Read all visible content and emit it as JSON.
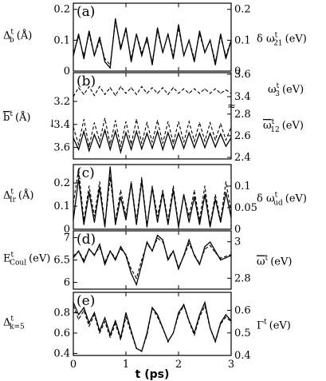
{
  "chart_data": [
    {
      "panel": "(a)",
      "type": "line",
      "left_axis": {
        "label": "Δ",
        "sup": "t",
        "sub": "b",
        "unit": "(Å)",
        "range": [
          0,
          0.22
        ],
        "ticks": [
          "0",
          "0.1",
          "0.2"
        ],
        "tick_values": [
          0,
          0.1,
          0.2
        ]
      },
      "right_axis": {
        "label": "δ ω",
        "sup": "t",
        "sub": "21",
        "unit": "(eV)",
        "range": [
          0,
          0.22
        ],
        "ticks": [
          "0",
          "0.1",
          "0.2"
        ],
        "tick_values": [
          0,
          0.1,
          0.2
        ]
      },
      "x": [
        0,
        0.1,
        0.2,
        0.3,
        0.4,
        0.5,
        0.6,
        0.7,
        0.8,
        0.9,
        1.0,
        1.1,
        1.2,
        1.3,
        1.4,
        1.5,
        1.6,
        1.7,
        1.8,
        1.9,
        2.0,
        2.1,
        2.2,
        2.3,
        2.4,
        2.5,
        2.6,
        2.7,
        2.8,
        2.9,
        3.0
      ],
      "series": [
        {
          "style": "solid",
          "axis": "left",
          "values": [
            0.05,
            0.12,
            0.04,
            0.13,
            0.05,
            0.11,
            0.03,
            0.01,
            0.17,
            0.07,
            0.14,
            0.03,
            0.12,
            0.05,
            0.11,
            0.02,
            0.14,
            0.06,
            0.12,
            0.04,
            0.15,
            0.05,
            0.1,
            0.03,
            0.13,
            0.06,
            0.1,
            0.02,
            0.12,
            0.04,
            0.1
          ]
        },
        {
          "style": "dashed",
          "axis": "right",
          "values": [
            0.06,
            0.11,
            0.05,
            0.12,
            0.05,
            0.1,
            0.04,
            0.02,
            0.16,
            0.08,
            0.13,
            0.04,
            0.12,
            0.06,
            0.1,
            0.03,
            0.13,
            0.06,
            0.12,
            0.05,
            0.14,
            0.05,
            0.1,
            0.04,
            0.12,
            0.06,
            0.1,
            0.03,
            0.11,
            0.05,
            0.1
          ]
        }
      ]
    },
    {
      "panel": "(b)",
      "type": "line",
      "left_axis": {
        "label": "b",
        "overline": true,
        "sup": "t",
        "unit": "(Å)",
        "arrow": "↓",
        "range": [
          3.7,
          2.95
        ],
        "ticks": [
          "3.2",
          "3.4",
          "3.6"
        ],
        "tick_values": [
          3.2,
          3.4,
          3.6
        ]
      },
      "right_axis_upper": {
        "label": "ω",
        "sup": "t",
        "sub": "3",
        "unit": "(eV)",
        "range": [
          3.35,
          3.6
        ],
        "ticks": [
          "3.6",
          "3.4"
        ],
        "tick_values": [
          3.6,
          3.4
        ]
      },
      "right_axis_lower": {
        "label": "ω",
        "overline": true,
        "sup": "t",
        "sub": "12",
        "unit": "(eV)",
        "range": [
          2.4,
          2.85
        ],
        "ticks": [
          "2.8",
          "2.6",
          "2.4"
        ],
        "tick_values": [
          2.8,
          2.6,
          2.4
        ]
      },
      "axis_break": "≈",
      "x": [
        0,
        0.1,
        0.2,
        0.3,
        0.4,
        0.5,
        0.6,
        0.7,
        0.8,
        0.9,
        1.0,
        1.1,
        1.2,
        1.3,
        1.4,
        1.5,
        1.6,
        1.7,
        1.8,
        1.9,
        2.0,
        2.1,
        2.2,
        2.3,
        2.4,
        2.5,
        2.6,
        2.7,
        2.8,
        2.9,
        3.0
      ],
      "series": [
        {
          "style": "dashed",
          "axis": "right_upper",
          "values": [
            3.4,
            3.48,
            3.42,
            3.49,
            3.41,
            3.49,
            3.42,
            3.48,
            3.41,
            3.49,
            3.43,
            3.48,
            3.42,
            3.49,
            3.43,
            3.48,
            3.43,
            3.48,
            3.42,
            3.48,
            3.43,
            3.47,
            3.43,
            3.47,
            3.43,
            3.47,
            3.43,
            3.47,
            3.43,
            3.46,
            3.43
          ]
        },
        {
          "style": "solid",
          "axis": "left",
          "values": [
            3.4,
            3.58,
            3.3,
            3.6,
            3.35,
            3.55,
            3.28,
            3.58,
            3.3,
            3.62,
            3.32,
            3.58,
            3.3,
            3.57,
            3.33,
            3.56,
            3.3,
            3.58,
            3.32,
            3.57,
            3.33,
            3.56,
            3.32,
            3.55,
            3.33,
            3.55,
            3.33,
            3.54,
            3.34,
            3.53,
            3.4
          ]
        },
        {
          "style": "dashed",
          "axis": "right_lower",
          "values": [
            2.68,
            2.52,
            2.75,
            2.5,
            2.72,
            2.55,
            2.76,
            2.52,
            2.74,
            2.5,
            2.73,
            2.52,
            2.75,
            2.53,
            2.72,
            2.54,
            2.74,
            2.53,
            2.73,
            2.53,
            2.73,
            2.54,
            2.73,
            2.55,
            2.72,
            2.55,
            2.72,
            2.56,
            2.71,
            2.56,
            2.68
          ]
        }
      ]
    },
    {
      "panel": "(c)",
      "type": "line",
      "left_axis": {
        "label": "Δ",
        "sup": "t",
        "sub": "Ir",
        "unit": "(Å)",
        "range": [
          0,
          0.28
        ],
        "ticks": [
          "0",
          "0.1",
          "0.2"
        ],
        "tick_values": [
          0,
          0.1,
          0.2
        ]
      },
      "right_axis": {
        "label": "δ ω",
        "sup": "t",
        "sub": "ud",
        "unit": "(eV)",
        "range": [
          0,
          0.15
        ],
        "ticks": [
          "0",
          "0.05",
          "0.1"
        ],
        "tick_values": [
          0,
          0.05,
          0.1
        ]
      },
      "x": [
        0,
        0.1,
        0.2,
        0.3,
        0.4,
        0.5,
        0.6,
        0.7,
        0.8,
        0.9,
        1.0,
        1.1,
        1.2,
        1.3,
        1.4,
        1.5,
        1.6,
        1.7,
        1.8,
        1.9,
        2.0,
        2.1,
        2.2,
        2.3,
        2.4,
        2.5,
        2.6,
        2.7,
        2.8,
        2.9,
        3.0
      ],
      "series": [
        {
          "style": "solid",
          "axis": "left",
          "values": [
            0.04,
            0.22,
            0.02,
            0.16,
            0.03,
            0.18,
            0.01,
            0.27,
            0.02,
            0.14,
            0.04,
            0.2,
            0.02,
            0.21,
            0.01,
            0.18,
            0.03,
            0.16,
            0.02,
            0.17,
            0.01,
            0.15,
            0.03,
            0.14,
            0.02,
            0.15,
            0.01,
            0.13,
            0.03,
            0.16,
            0.05
          ]
        },
        {
          "style": "dashed",
          "axis": "right",
          "values": [
            0.06,
            0.14,
            0.02,
            0.1,
            0.03,
            0.11,
            0.01,
            0.12,
            0.02,
            0.09,
            0.03,
            0.11,
            0.02,
            0.12,
            0.01,
            0.1,
            0.03,
            0.09,
            0.02,
            0.1,
            0.01,
            0.08,
            0.03,
            0.09,
            0.02,
            0.1,
            0.01,
            0.08,
            0.02,
            0.11,
            0.04
          ]
        }
      ]
    },
    {
      "panel": "(d)",
      "type": "line",
      "left_axis": {
        "label": "E",
        "sup": "t",
        "sub": "Coul",
        "unit": "(eV)",
        "range": [
          5.85,
          7.15
        ],
        "ticks": [
          "6",
          "6.5",
          "7"
        ],
        "tick_values": [
          6,
          6.5,
          7
        ]
      },
      "right_axis": {
        "label": "ω",
        "overline": true,
        "sup": "t",
        "unit": "(eV)",
        "range": [
          2.74,
          3.06
        ],
        "ticks": [
          "2.8",
          "3"
        ],
        "tick_values": [
          2.8,
          3.0
        ]
      },
      "x": [
        0,
        0.1,
        0.2,
        0.3,
        0.4,
        0.5,
        0.6,
        0.7,
        0.8,
        0.9,
        1.0,
        1.1,
        1.2,
        1.3,
        1.4,
        1.5,
        1.6,
        1.7,
        1.8,
        1.9,
        2.0,
        2.1,
        2.2,
        2.3,
        2.4,
        2.5,
        2.6,
        2.7,
        2.8,
        2.9,
        3.0
      ],
      "series": [
        {
          "style": "solid",
          "axis": "left",
          "values": [
            6.55,
            6.7,
            6.45,
            6.75,
            6.6,
            6.85,
            6.4,
            6.7,
            6.5,
            6.8,
            6.6,
            6.2,
            5.95,
            6.4,
            6.9,
            6.7,
            7.05,
            6.95,
            6.5,
            6.7,
            6.3,
            6.6,
            6.95,
            6.6,
            6.4,
            6.8,
            6.9,
            6.7,
            6.5,
            6.55,
            6.6
          ]
        },
        {
          "style": "dashed",
          "axis": "right",
          "values": [
            2.92,
            2.95,
            2.9,
            2.96,
            2.93,
            2.97,
            2.89,
            2.95,
            2.91,
            2.96,
            2.93,
            2.85,
            2.8,
            2.9,
            2.99,
            2.95,
            3.02,
            3.0,
            2.91,
            2.95,
            2.86,
            2.92,
            2.99,
            2.93,
            2.88,
            2.96,
            2.98,
            2.94,
            2.91,
            2.92,
            2.93
          ]
        }
      ]
    },
    {
      "panel": "(e)",
      "type": "line",
      "left_axis": {
        "label": "Δ",
        "sup": "t",
        "sub": "k=5",
        "range": [
          0.38,
          1.0
        ],
        "ticks": [
          "0.4",
          "0.6",
          "0.8"
        ],
        "tick_values": [
          0.4,
          0.6,
          0.8
        ]
      },
      "right_axis": {
        "label": "Γ",
        "sup": "t",
        "unit": "(eV)",
        "range": [
          0.4,
          0.68
        ],
        "ticks": [
          "0.4",
          "0.5",
          "0.6"
        ],
        "tick_values": [
          0.4,
          0.5,
          0.6
        ]
      },
      "x": [
        0,
        0.1,
        0.2,
        0.3,
        0.4,
        0.5,
        0.6,
        0.7,
        0.8,
        0.9,
        1.0,
        1.1,
        1.2,
        1.3,
        1.4,
        1.5,
        1.6,
        1.7,
        1.8,
        1.9,
        2.0,
        2.1,
        2.2,
        2.3,
        2.4,
        2.5,
        2.6,
        2.7,
        2.8,
        2.9,
        3.0
      ],
      "series": [
        {
          "style": "solid",
          "axis": "left",
          "values": [
            0.9,
            0.78,
            0.85,
            0.7,
            0.8,
            0.62,
            0.75,
            0.58,
            0.72,
            0.55,
            0.8,
            0.62,
            0.45,
            0.42,
            0.6,
            0.85,
            0.78,
            0.65,
            0.52,
            0.6,
            0.8,
            0.88,
            0.72,
            0.6,
            0.78,
            0.9,
            0.65,
            0.52,
            0.7,
            0.78,
            0.72
          ]
        },
        {
          "style": "dashed",
          "axis": "right",
          "values": [
            0.62,
            0.56,
            0.6,
            0.53,
            0.58,
            0.5,
            0.55,
            0.48,
            0.54,
            0.47,
            0.57,
            0.5,
            0.43,
            0.42,
            0.49,
            0.61,
            0.57,
            0.52,
            0.46,
            0.5,
            0.58,
            0.62,
            0.55,
            0.49,
            0.57,
            0.62,
            0.52,
            0.46,
            0.54,
            0.57,
            0.55
          ]
        }
      ]
    }
  ],
  "x_axis": {
    "label": "t (ps)",
    "range": [
      0,
      3
    ],
    "ticks": [
      "0",
      "1",
      "2",
      "3"
    ],
    "tick_values": [
      0,
      1,
      2,
      3
    ]
  }
}
